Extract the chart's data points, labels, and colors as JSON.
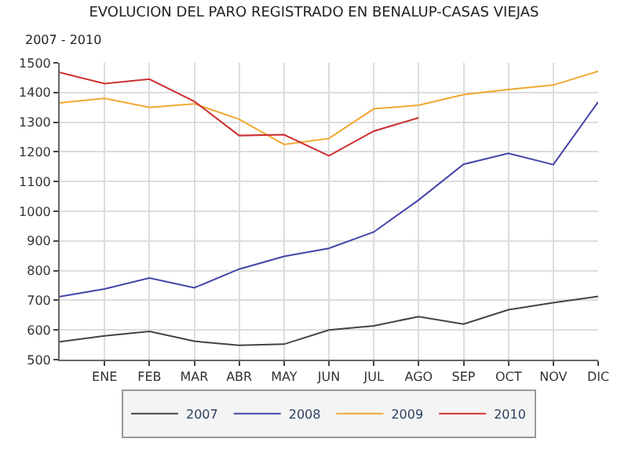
{
  "chart_data": {
    "type": "line",
    "title": "EVOLUCION DEL PARO REGISTRADO EN BENALUP-CASAS VIEJAS",
    "subtitle": "2007 - 2010",
    "categories": [
      null,
      "ENE",
      "FEB",
      "MAR",
      "ABR",
      "MAY",
      "JUN",
      "JUL",
      "AGO",
      "SEP",
      "OCT",
      "NOV",
      "DIC"
    ],
    "series": [
      {
        "name": "2007",
        "color": "#444444",
        "values": [
          560,
          580,
          595,
          562,
          548,
          552,
          600,
          614,
          645,
          620,
          668,
          692,
          713
        ]
      },
      {
        "name": "2008",
        "color": "#4444aa",
        "values": [
          712,
          738,
          775,
          742,
          805,
          848,
          875,
          930,
          1038,
          1158,
          1195,
          1157,
          1368
        ]
      },
      {
        "name": "2009",
        "color": "#f0a830",
        "values": [
          1365,
          1380,
          1350,
          1362,
          1310,
          1225,
          1245,
          1345,
          1357,
          1393,
          1410,
          1425,
          1472
        ]
      },
      {
        "name": "2010",
        "color": "#cc3030",
        "values": [
          1468,
          1430,
          1445,
          1370,
          1255,
          1258,
          1187,
          1270,
          1315,
          null,
          null,
          null,
          null
        ]
      }
    ],
    "ylim": [
      500,
      1500
    ],
    "yticks": [
      500,
      600,
      700,
      800,
      900,
      1000,
      1100,
      1200,
      1300,
      1400,
      1500
    ],
    "grid": true,
    "legend": "bottom",
    "marker": "none",
    "line_style": "solid"
  }
}
